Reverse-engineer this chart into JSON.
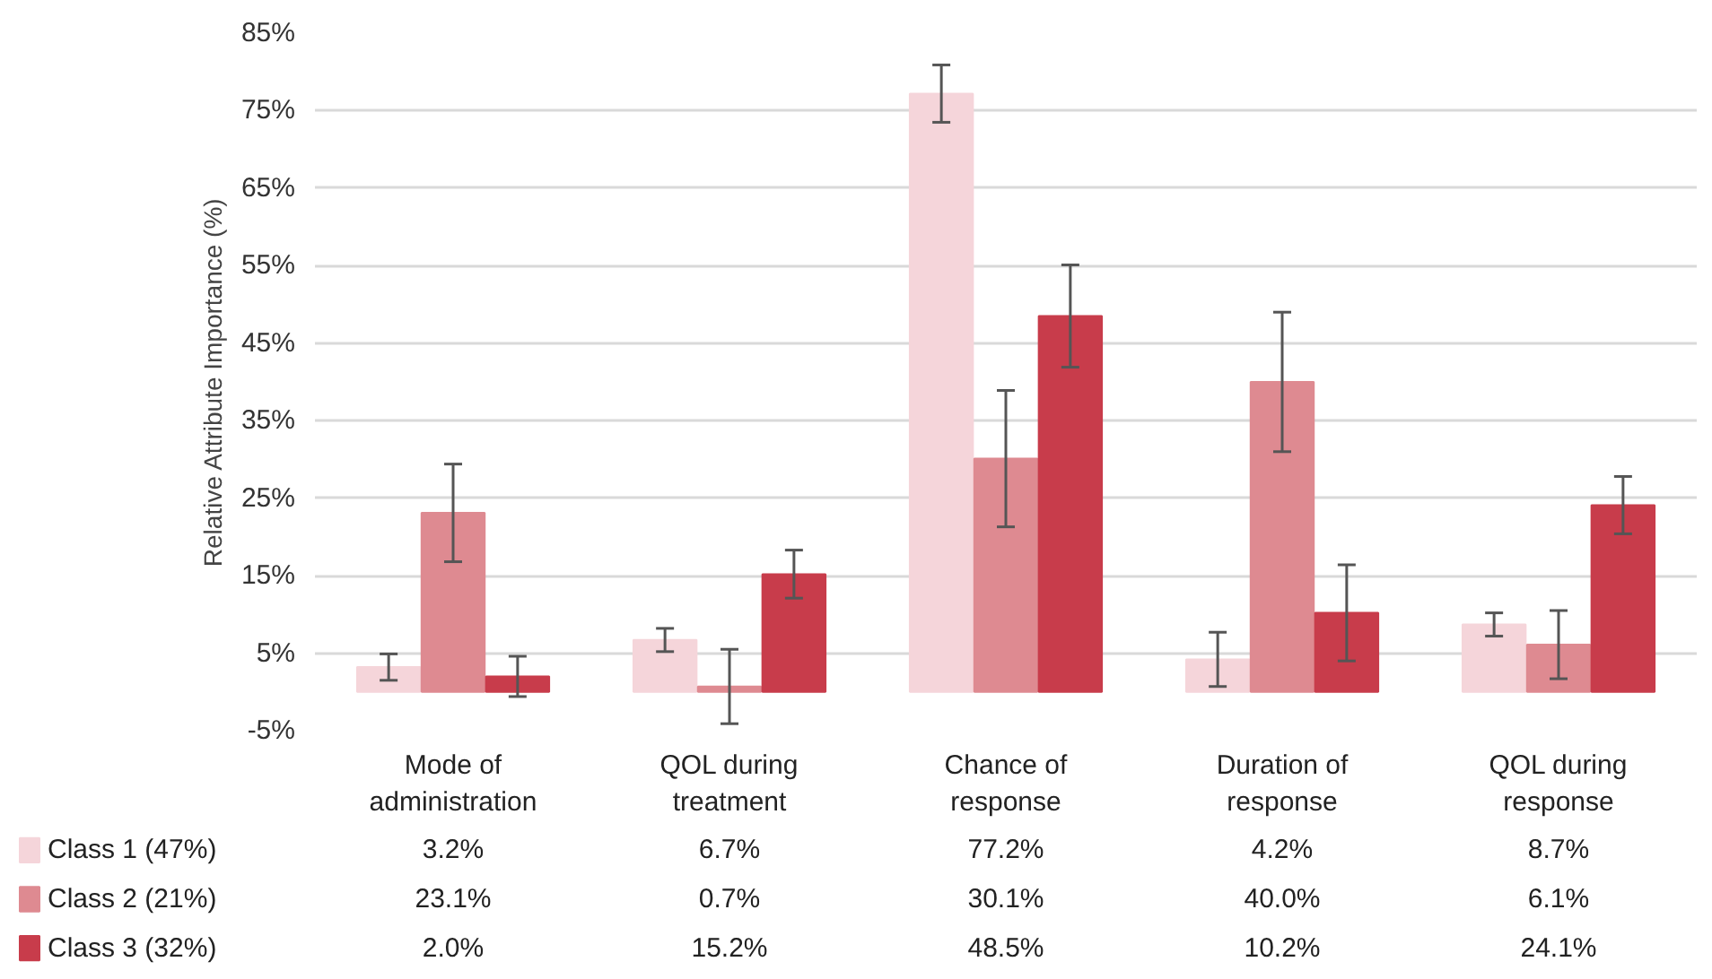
{
  "chart_data": {
    "type": "bar",
    "ylabel": "Relative Attribute Importance (%)",
    "categories": [
      "Mode of administration",
      "QOL during treatment",
      "Chance of response",
      "Duration of response",
      "QOL during response"
    ],
    "series": [
      {
        "name": "Class 1 (47%)",
        "color": "#f5d5da",
        "values": [
          3.2,
          6.7,
          77.2,
          4.2,
          8.7
        ],
        "value_labels": [
          "3.2%",
          "6.7%",
          "77.2%",
          "4.2%",
          "8.7%"
        ],
        "errors": [
          1.7,
          1.5,
          3.7,
          3.5,
          1.5
        ]
      },
      {
        "name": "Class 2 (21%)",
        "color": "#de8a91",
        "values": [
          23.1,
          0.7,
          30.1,
          40.0,
          6.1
        ],
        "value_labels": [
          "23.1%",
          "0.7%",
          "30.1%",
          "40.0%",
          "6.1%"
        ],
        "errors": [
          6.3,
          4.8,
          8.8,
          9.0,
          4.4
        ]
      },
      {
        "name": "Class 3 (32%)",
        "color": "#c83c4b",
        "values": [
          2.0,
          15.2,
          48.5,
          10.2,
          24.1
        ],
        "value_labels": [
          "2.0%",
          "15.2%",
          "48.5%",
          "10.2%",
          "24.1%"
        ],
        "errors": [
          2.6,
          3.1,
          6.6,
          6.2,
          3.7
        ]
      }
    ],
    "ylim": [
      -5,
      85
    ],
    "yticks": [
      {
        "value": -5,
        "label": "-5%"
      },
      {
        "value": 5,
        "label": "5%"
      },
      {
        "value": 15,
        "label": "15%"
      },
      {
        "value": 25,
        "label": "25%"
      },
      {
        "value": 35,
        "label": "35%"
      },
      {
        "value": 45,
        "label": "45%"
      },
      {
        "value": 55,
        "label": "55%"
      },
      {
        "value": 65,
        "label": "65%"
      },
      {
        "value": 75,
        "label": "75%"
      },
      {
        "value": 85,
        "label": "85%"
      }
    ],
    "grid": "y",
    "legend": "bottom left",
    "data_labels": true
  }
}
